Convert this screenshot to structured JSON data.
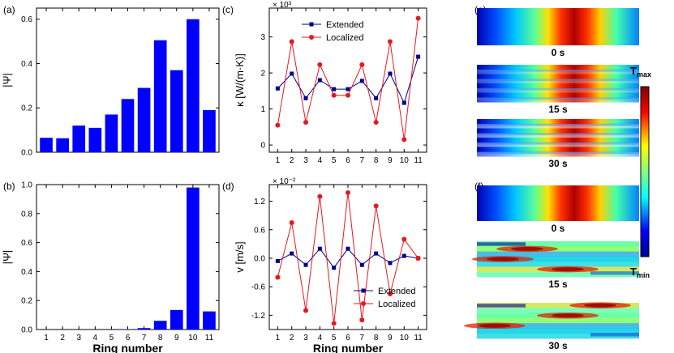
{
  "chart_data": [
    {
      "id": "a",
      "type": "bar",
      "panel_label": "(a)",
      "ylabel": "|Ψ|",
      "xlabel": "",
      "ylim": [
        0,
        0.65
      ],
      "yticks": [
        0.0,
        0.2,
        0.4,
        0.6
      ],
      "ytick_labels": [
        "0.0",
        "0.2",
        "0.4",
        "0.6"
      ],
      "categories": [
        "1",
        "2",
        "3",
        "4",
        "5",
        "6",
        "7",
        "8",
        "9",
        "10",
        "11"
      ],
      "show_xtick_labels": false,
      "color": "#0000ff",
      "values": [
        0.065,
        0.063,
        0.12,
        0.11,
        0.17,
        0.24,
        0.29,
        0.505,
        0.37,
        0.6,
        0.19
      ]
    },
    {
      "id": "b",
      "type": "bar",
      "panel_label": "(b)",
      "ylabel": "|Ψ|",
      "xlabel": "Ring number",
      "ylim": [
        0,
        1.0
      ],
      "yticks": [
        0.0,
        0.2,
        0.4,
        0.6,
        0.8,
        1.0
      ],
      "ytick_labels": [
        "0.0",
        "0.2",
        "0.4",
        "0.6",
        "0.8",
        "1.0"
      ],
      "categories": [
        "1",
        "2",
        "3",
        "4",
        "5",
        "6",
        "7",
        "8",
        "9",
        "10",
        "11"
      ],
      "show_xtick_labels": true,
      "color": "#0000ff",
      "values": [
        0.0,
        0.0,
        0.0,
        0.0,
        0.0,
        0.002,
        0.01,
        0.06,
        0.135,
        0.98,
        0.125
      ]
    },
    {
      "id": "c",
      "type": "line",
      "panel_label": "(c)",
      "ylabel": "κ [W/(m·K)]",
      "multiplier": "× 10³",
      "xlabel": "",
      "ylim": [
        -0.2,
        3.8
      ],
      "yticks": [
        0,
        1,
        2,
        3
      ],
      "ytick_labels": [
        "0",
        "1",
        "2",
        "3"
      ],
      "x": [
        1,
        2,
        3,
        4,
        5,
        6,
        7,
        8,
        9,
        10,
        11
      ],
      "xtick_labels": [
        "1",
        "2",
        "3",
        "4",
        "5",
        "6",
        "7",
        "8",
        "9",
        "10",
        "11"
      ],
      "show_xtick_labels": true,
      "legend_position": "top-center",
      "series": [
        {
          "name": "Extended",
          "color": "#00008b",
          "marker": "square",
          "values": [
            1.57,
            1.98,
            1.3,
            1.8,
            1.55,
            1.55,
            1.78,
            1.3,
            1.98,
            1.17,
            2.45
          ]
        },
        {
          "name": "Localized",
          "color": "#e8171e",
          "marker": "circle",
          "values": [
            0.55,
            2.87,
            0.63,
            2.23,
            1.38,
            1.38,
            2.23,
            0.63,
            2.87,
            0.15,
            3.52
          ]
        }
      ]
    },
    {
      "id": "d",
      "type": "line",
      "panel_label": "(d)",
      "ylabel": "v [m/s]",
      "multiplier": "× 10⁻²",
      "xlabel": "Ring number",
      "ylim": [
        -1.5,
        1.55
      ],
      "yticks": [
        -1.2,
        -0.6,
        0.0,
        0.6,
        1.2
      ],
      "ytick_labels": [
        "-1.2",
        "-0.6",
        "0.0",
        "0.6",
        "1.2"
      ],
      "x": [
        1,
        2,
        3,
        4,
        5,
        6,
        7,
        8,
        9,
        10,
        11
      ],
      "xtick_labels": [
        "1",
        "2",
        "3",
        "4",
        "5",
        "6",
        "7",
        "8",
        "9",
        "10",
        "11"
      ],
      "show_xtick_labels": true,
      "legend_position": "bottom-right",
      "series": [
        {
          "name": "Extended",
          "color": "#00008b",
          "marker": "square",
          "values": [
            -0.06,
            0.1,
            -0.14,
            0.2,
            -0.2,
            0.2,
            -0.14,
            0.1,
            -0.1,
            0.05,
            0.0
          ]
        },
        {
          "name": "Localized",
          "color": "#e8171e",
          "marker": "circle",
          "values": [
            -0.4,
            0.75,
            -1.1,
            1.3,
            -1.37,
            1.38,
            -1.3,
            1.1,
            -0.75,
            0.4,
            0.0
          ]
        }
      ]
    },
    {
      "id": "e",
      "type": "heatmap",
      "panel_label": "(e)",
      "frames": [
        {
          "time_label": "0 s",
          "pattern": "uniform"
        },
        {
          "time_label": "15 s",
          "pattern": "striped-mild"
        },
        {
          "time_label": "30 s",
          "pattern": "striped-strong"
        }
      ]
    },
    {
      "id": "f",
      "type": "heatmap",
      "panel_label": "(f)",
      "frames": [
        {
          "time_label": "0 s",
          "pattern": "uniform"
        },
        {
          "time_label": "15 s",
          "pattern": "scrambled"
        },
        {
          "time_label": "30 s",
          "pattern": "scrambled-strong"
        }
      ]
    }
  ],
  "colorbar": {
    "max_label": "T",
    "max_sub": "max",
    "min_label": "T",
    "min_sub": "min",
    "colormap": "jet"
  }
}
